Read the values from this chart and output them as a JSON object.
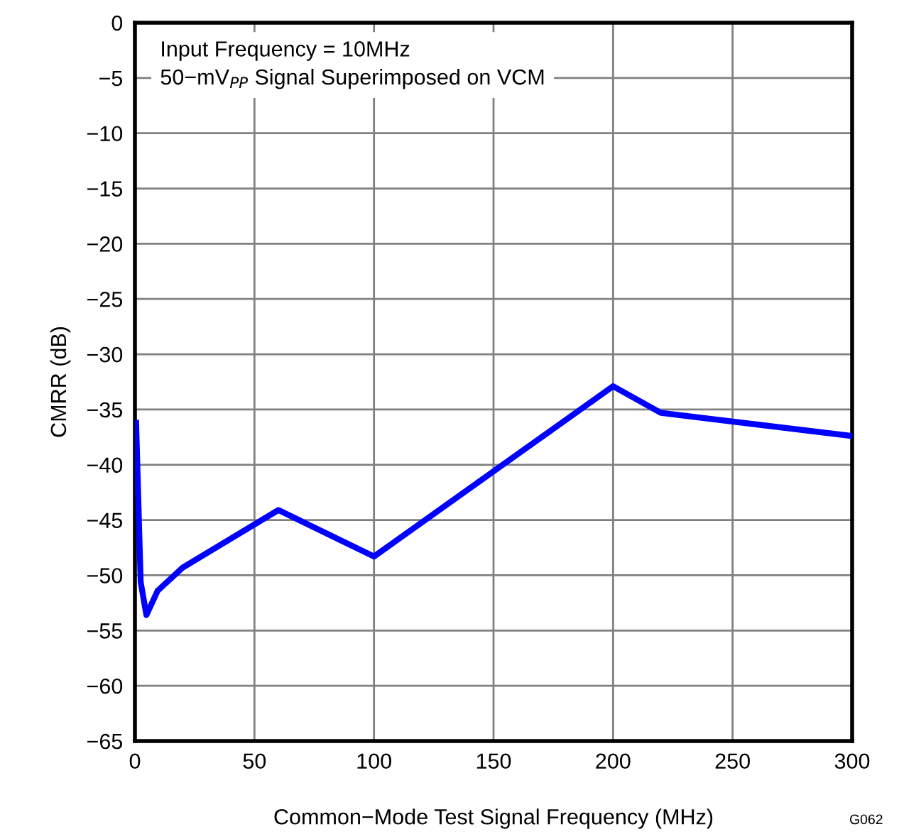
{
  "chart_data": {
    "type": "line",
    "xlabel": "Common−Mode Test Signal Frequency (MHz)",
    "ylabel": "CMRR (dB)",
    "x": [
      0.5,
      2.4,
      4.8,
      9.5,
      20,
      60,
      100,
      200,
      220,
      300
    ],
    "series": [
      {
        "color": "#0000ff",
        "values": [
          -36.2,
          -50.6,
          -53.6,
          -51.4,
          -49.3,
          -44.1,
          -48.3,
          -32.9,
          -35.3,
          -37.4
        ]
      }
    ],
    "xlim": [
      0,
      300
    ],
    "xticks": [
      0,
      50,
      100,
      150,
      200,
      250,
      300
    ],
    "ylim": [
      -65,
      0
    ],
    "yticks": [
      {
        "value": 0,
        "label": "0"
      },
      {
        "value": -5,
        "label": "−5"
      },
      {
        "value": -10,
        "label": "−10"
      },
      {
        "value": -15,
        "label": "−15"
      },
      {
        "value": -20,
        "label": "−20"
      },
      {
        "value": -25,
        "label": "−25"
      },
      {
        "value": -30,
        "label": "−30"
      },
      {
        "value": -35,
        "label": "−35"
      },
      {
        "value": -40,
        "label": "−40"
      },
      {
        "value": -45,
        "label": "−45"
      },
      {
        "value": -50,
        "label": "−50"
      },
      {
        "value": -55,
        "label": "−55"
      },
      {
        "value": -60,
        "label": "−60"
      },
      {
        "value": -65,
        "label": "−65"
      }
    ],
    "grid": true,
    "legend": false,
    "marker": "none",
    "line_style": "solid",
    "annotations": [
      "Input Frequency = 10MHz\n50−mV$_{PP}$ Signal Superimposed on VCM",
      "G062"
    ]
  }
}
